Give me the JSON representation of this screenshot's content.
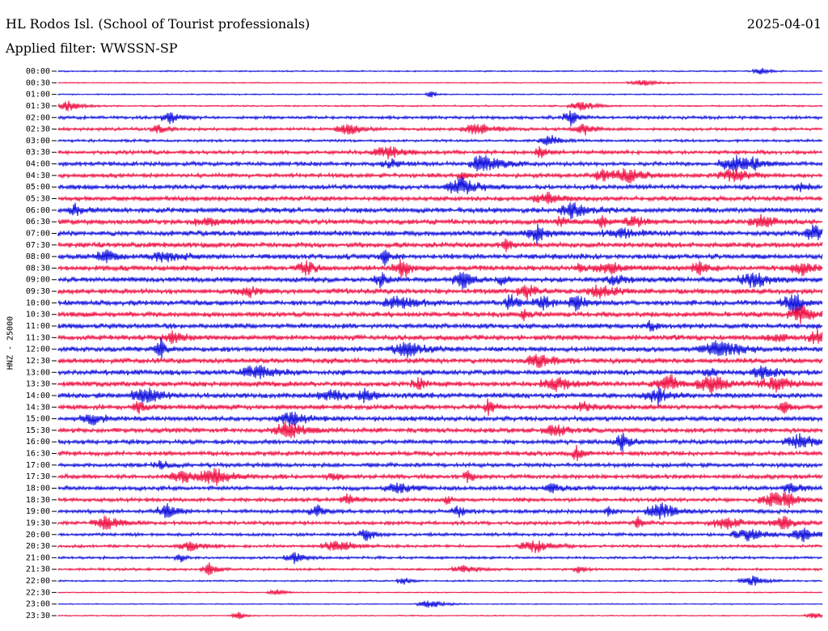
{
  "header": {
    "station": "HL Rodos Isl. (School of Tourist professionals)",
    "date": "2025-04-01",
    "filter": "Applied filter: WWSSN-SP",
    "channel": "HNZ - 25000"
  },
  "colors": {
    "trace_a": "#1010dd",
    "trace_b": "#ee1144"
  },
  "chart_data": {
    "type": "line",
    "title": "HL Rodos Isl. (School of Tourist professionals)",
    "ylabel": "HNZ - 25000",
    "row_labels": [
      "00:00",
      "00:30",
      "01:00",
      "01:30",
      "02:00",
      "02:30",
      "03:00",
      "03:30",
      "04:00",
      "04:30",
      "05:00",
      "05:30",
      "06:00",
      "06:30",
      "07:00",
      "07:30",
      "08:00",
      "08:30",
      "09:00",
      "09:30",
      "10:00",
      "10:30",
      "11:00",
      "11:30",
      "12:00",
      "12:30",
      "13:00",
      "13:30",
      "14:00",
      "14:30",
      "15:00",
      "15:30",
      "16:00",
      "16:30",
      "17:00",
      "17:30",
      "18:00",
      "18:30",
      "19:00",
      "19:30",
      "20:00",
      "20:30",
      "21:00",
      "21:30",
      "22:00",
      "22:30",
      "23:00",
      "23:30"
    ],
    "row_noise": [
      0.25,
      0.2,
      0.25,
      0.3,
      0.6,
      0.6,
      0.5,
      0.7,
      0.8,
      0.8,
      0.9,
      0.9,
      1.0,
      1.0,
      1.0,
      1.0,
      1.0,
      1.0,
      1.0,
      1.0,
      1.0,
      1.0,
      1.0,
      1.0,
      1.0,
      1.0,
      1.0,
      1.0,
      1.0,
      0.95,
      0.95,
      0.9,
      0.85,
      0.85,
      0.8,
      0.8,
      0.8,
      0.75,
      0.75,
      0.7,
      0.6,
      0.55,
      0.5,
      0.45,
      0.3,
      0.2,
      0.2,
      0.2
    ],
    "row_colors": [
      "a",
      "b"
    ]
  }
}
